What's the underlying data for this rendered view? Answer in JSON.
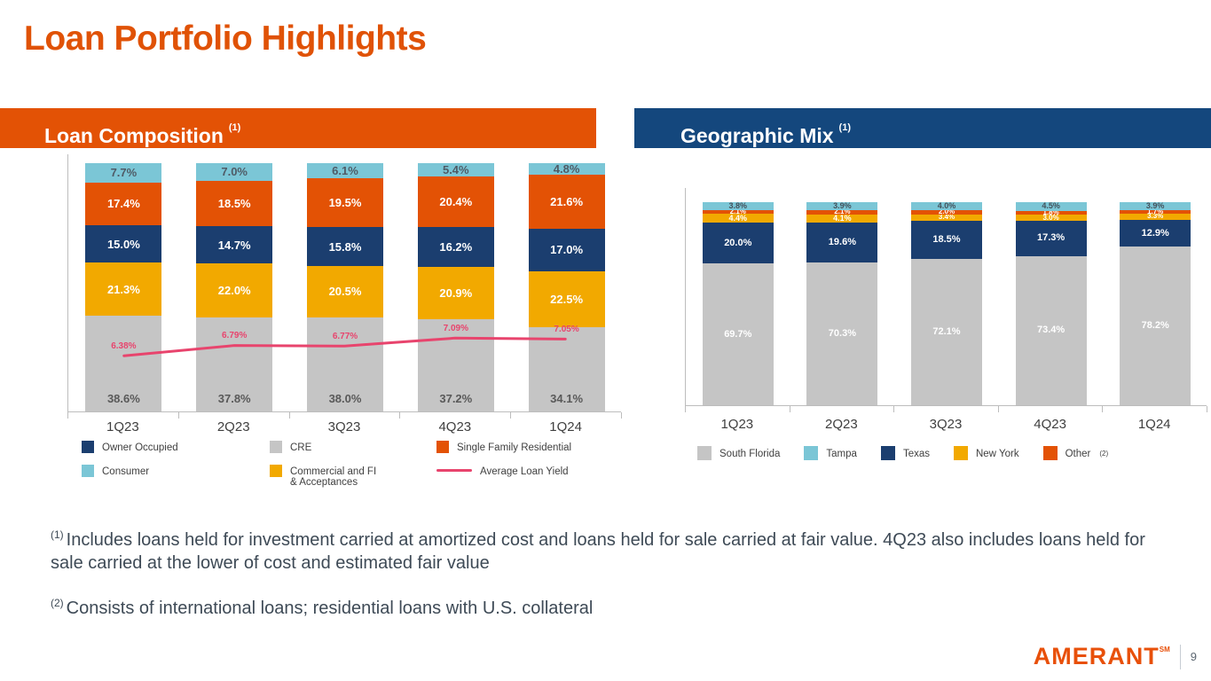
{
  "page": {
    "title": "Loan Portfolio Highlights",
    "page_number": "9",
    "logo_text": "AMERANT",
    "logo_mark": "SM"
  },
  "panels": {
    "left": {
      "title": "Loan Composition",
      "footnote_ref": "(1)",
      "color": "#E35205"
    },
    "right": {
      "title": "Geographic Mix",
      "footnote_ref": "(1)",
      "color": "#14477D"
    }
  },
  "chart_data": [
    {
      "type": "bar",
      "stacked": true,
      "title": "Loan Composition",
      "unit": "%",
      "ylim": [
        0,
        100
      ],
      "categories": [
        "1Q23",
        "2Q23",
        "3Q23",
        "4Q23",
        "1Q24"
      ],
      "series": [
        {
          "name": "CRE",
          "color": "#C5C5C5",
          "label_color": "#595959",
          "label_align": "bottom",
          "values": [
            38.6,
            37.8,
            38.0,
            37.2,
            34.1
          ]
        },
        {
          "name": "Commercial and FI & Acceptances",
          "color": "#F2A900",
          "label_color": "#FFFFFF",
          "values": [
            21.3,
            22.0,
            20.5,
            20.9,
            22.5
          ]
        },
        {
          "name": "Owner Occupied",
          "color": "#1B3E6F",
          "label_color": "#FFFFFF",
          "values": [
            15.0,
            14.7,
            15.8,
            16.2,
            17.0
          ]
        },
        {
          "name": "Single Family Residential",
          "color": "#E35205",
          "label_color": "#FFFFFF",
          "values": [
            17.4,
            18.5,
            19.5,
            20.4,
            21.6
          ]
        },
        {
          "name": "Consumer",
          "color": "#7BC6D6",
          "label_color": "#4F5B66",
          "values": [
            7.7,
            7.0,
            6.1,
            5.4,
            4.8
          ]
        }
      ],
      "line_series": {
        "name": "Average Loan Yield",
        "color": "#E8446D",
        "values": [
          6.38,
          6.79,
          6.77,
          7.09,
          7.05
        ],
        "labels": [
          "6.38%",
          "6.79%",
          "6.77%",
          "7.09%",
          "7.05%"
        ]
      }
    },
    {
      "type": "bar",
      "stacked": true,
      "title": "Geographic Mix",
      "unit": "%",
      "ylim": [
        0,
        100
      ],
      "categories": [
        "1Q23",
        "2Q23",
        "3Q23",
        "4Q23",
        "1Q24"
      ],
      "series": [
        {
          "name": "South Florida",
          "color": "#C5C5C5",
          "label_color": "#FFFFFF",
          "values": [
            69.7,
            70.3,
            72.1,
            73.4,
            78.2
          ]
        },
        {
          "name": "Texas",
          "color": "#1B3E6F",
          "label_color": "#FFFFFF",
          "values": [
            20.0,
            19.6,
            18.5,
            17.3,
            12.9
          ]
        },
        {
          "name": "New York",
          "color": "#F2A900",
          "label_color": "#FFFFFF",
          "values": [
            4.4,
            4.1,
            3.4,
            3.0,
            3.3
          ]
        },
        {
          "name": "Other",
          "color": "#E35205",
          "label_color": "#FFFFFF",
          "values": [
            2.1,
            2.1,
            2.0,
            1.8,
            1.7
          ]
        },
        {
          "name": "Tampa",
          "color": "#7BC6D6",
          "label_color": "#44505A",
          "values": [
            3.8,
            3.9,
            4.0,
            4.5,
            3.9
          ]
        }
      ]
    }
  ],
  "legends": {
    "loan_composition": [
      {
        "label": "Owner Occupied",
        "color": "#1B3E6F",
        "swatch": "square"
      },
      {
        "label": "CRE",
        "color": "#C5C5C5",
        "swatch": "square"
      },
      {
        "label": "Single Family Residential",
        "color": "#E35205",
        "swatch": "square"
      },
      {
        "label": "Consumer",
        "color": "#7BC6D6",
        "swatch": "square"
      },
      {
        "label": "Commercial and FI\n& Acceptances",
        "color": "#F2A900",
        "swatch": "square"
      },
      {
        "label": "Average Loan Yield",
        "color": "#E8446D",
        "swatch": "line"
      }
    ],
    "geographic_mix": [
      {
        "label": "South Florida",
        "color": "#C5C5C5",
        "swatch": "square"
      },
      {
        "label": "Tampa",
        "color": "#7BC6D6",
        "swatch": "square"
      },
      {
        "label": "Texas",
        "color": "#1B3E6F",
        "swatch": "square"
      },
      {
        "label": "New York",
        "color": "#F2A900",
        "swatch": "square"
      },
      {
        "label": "Other",
        "color": "#E35205",
        "swatch": "square",
        "sup": "(2)"
      }
    ]
  },
  "footnotes": [
    {
      "sup": "(1)",
      "text": "Includes loans held for investment carried at amortized cost and loans held for sale carried at fair value. 4Q23 also includes loans held for sale carried at the lower of cost and estimated fair value"
    },
    {
      "sup": "(2)",
      "text": "Consists of international loans; residential loans with U.S. collateral"
    }
  ]
}
